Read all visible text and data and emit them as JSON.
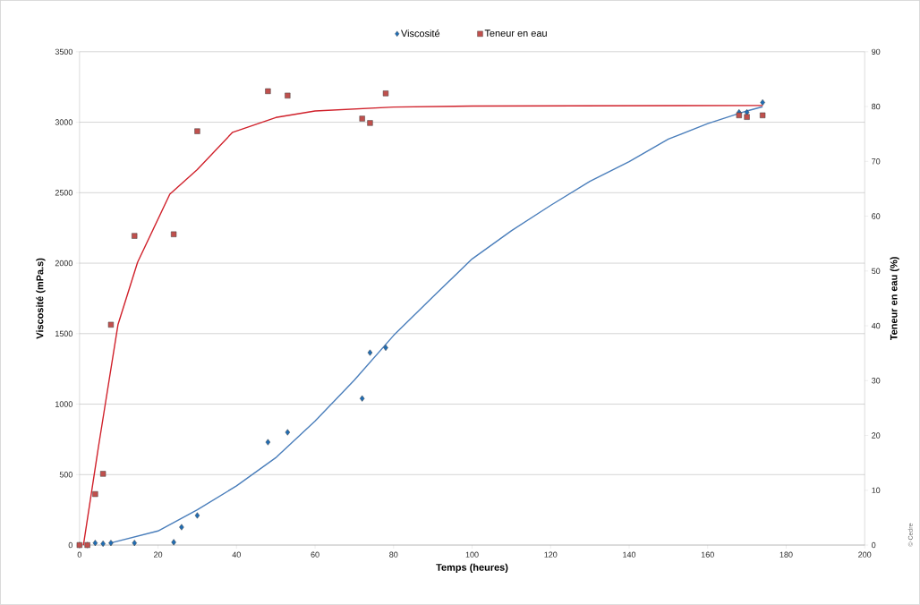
{
  "chart_data": {
    "type": "scatter",
    "xlabel": "Temps (heures)",
    "ylabel": "Viscosité (mPa.s)",
    "y2label": "Teneur en eau (%)",
    "annotations": [
      "© Cedre"
    ],
    "xlim": [
      0,
      200
    ],
    "xticks": [
      0,
      20,
      40,
      60,
      80,
      100,
      120,
      140,
      160,
      180,
      200
    ],
    "ylim": [
      0,
      3500
    ],
    "yticks": [
      0,
      500,
      1000,
      1500,
      2000,
      2500,
      3000,
      3500
    ],
    "y2lim": [
      0,
      90
    ],
    "y2ticks": [
      0,
      10,
      20,
      30,
      40,
      50,
      60,
      70,
      80,
      90
    ],
    "grid": "y",
    "legend": "top",
    "series": [
      {
        "name": "Viscosité",
        "color": "#1f6db5",
        "marker": "diamond",
        "x": [
          0,
          2,
          4,
          6,
          8,
          14,
          24,
          26,
          30,
          48,
          53,
          72,
          74,
          78,
          168,
          170,
          174
        ],
        "values": [
          0,
          0,
          15,
          10,
          15,
          15,
          20,
          127,
          210,
          730,
          800,
          1040,
          1365,
          1400,
          3070,
          3070,
          3140
        ]
      },
      {
        "name": "Teneur en eau",
        "color": "#c0504d",
        "marker": "square",
        "axis": "y2",
        "x": [
          0,
          2,
          4,
          6,
          8,
          14,
          24,
          30,
          48,
          53,
          72,
          74,
          78,
          168,
          170,
          174
        ],
        "values": [
          0,
          0,
          9.3,
          13,
          40.2,
          56.4,
          56.7,
          75.5,
          82.8,
          82.0,
          77.8,
          77.0,
          82.4,
          78.4,
          78.1,
          78.4
        ]
      },
      {
        "type": "line",
        "color": "#4a7ebb",
        "marker": "none",
        "x": [
          8,
          20,
          30,
          40,
          50,
          60,
          70,
          80,
          90,
          100,
          110,
          120,
          130,
          140,
          150,
          160,
          170,
          174
        ],
        "values": [
          15,
          100,
          250,
          420,
          620,
          880,
          1170,
          1487,
          1760,
          2030,
          2230,
          2410,
          2580,
          2720,
          2880,
          2990,
          3080,
          3110
        ]
      },
      {
        "type": "line",
        "color": "#d0202a",
        "marker": "none",
        "axis": "y2",
        "x": [
          1,
          4.8,
          9.8,
          14.8,
          23,
          30,
          39,
          50,
          60,
          80,
          100,
          174
        ],
        "values": [
          0,
          17.8,
          40.2,
          51.6,
          64,
          68.5,
          75.3,
          78,
          79.2,
          79.9,
          80.1,
          80.2
        ]
      }
    ]
  }
}
